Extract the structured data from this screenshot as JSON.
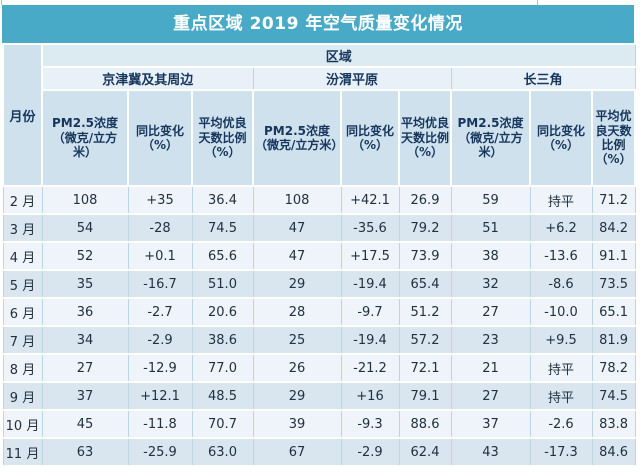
{
  "title": "重点区域 2019 年空气质量变化情况",
  "table": {
    "region_header": "区域",
    "month_header": "月份",
    "regions": [
      "京津冀及其周边",
      "汾渭平原",
      "长三角"
    ],
    "metric_headers": [
      "PM2.5浓度（微克/立方米）",
      "同比变化（%）",
      "平均优良天数比例（%）"
    ],
    "rows": [
      {
        "month": "2 月",
        "values": [
          "108",
          "+35",
          "36.4",
          "108",
          "+42.1",
          "26.9",
          "59",
          "持平",
          "71.2"
        ]
      },
      {
        "month": "3 月",
        "values": [
          "54",
          "-28",
          "74.5",
          "47",
          "-35.6",
          "79.2",
          "51",
          "+6.2",
          "84.2"
        ]
      },
      {
        "month": "4 月",
        "values": [
          "52",
          "+0.1",
          "65.6",
          "47",
          "+17.5",
          "73.9",
          "38",
          "-13.6",
          "91.1"
        ]
      },
      {
        "month": "5 月",
        "values": [
          "35",
          "-16.7",
          "51.0",
          "29",
          "-19.4",
          "65.4",
          "32",
          "-8.6",
          "73.5"
        ]
      },
      {
        "month": "6 月",
        "values": [
          "36",
          "-2.7",
          "20.6",
          "28",
          "-9.7",
          "51.2",
          "27",
          "-10.0",
          "65.1"
        ]
      },
      {
        "month": "7 月",
        "values": [
          "34",
          "-2.9",
          "38.6",
          "25",
          "-19.4",
          "57.2",
          "23",
          "+9.5",
          "81.9"
        ]
      },
      {
        "month": "8 月",
        "values": [
          "27",
          "-12.9",
          "77.0",
          "26",
          "-21.2",
          "72.1",
          "21",
          "持平",
          "78.2"
        ]
      },
      {
        "month": "9 月",
        "values": [
          "37",
          "+12.1",
          "48.5",
          "29",
          "+16",
          "79.1",
          "27",
          "持平",
          "74.5"
        ]
      },
      {
        "month": "10 月",
        "values": [
          "45",
          "-11.8",
          "70.7",
          "39",
          "-9.3",
          "88.6",
          "37",
          "-2.6",
          "83.8"
        ]
      },
      {
        "month": "11 月",
        "values": [
          "63",
          "-25.9",
          "63.0",
          "67",
          "-2.9",
          "62.4",
          "43",
          "-17.3",
          "84.6"
        ]
      }
    ]
  },
  "colors": {
    "title_bg": "#48aac6",
    "title_text": "#ffffff",
    "header_fill": "#cfe1ed",
    "quyu_row_fill": "#dceaf2",
    "region_row_fill": "#e9f1f8",
    "row_pale": "#eef4f9",
    "row_blue": "#d9e6ef",
    "grid_line": "#bcd5e5",
    "header_text": "#17365d",
    "data_text": "#22313f"
  }
}
